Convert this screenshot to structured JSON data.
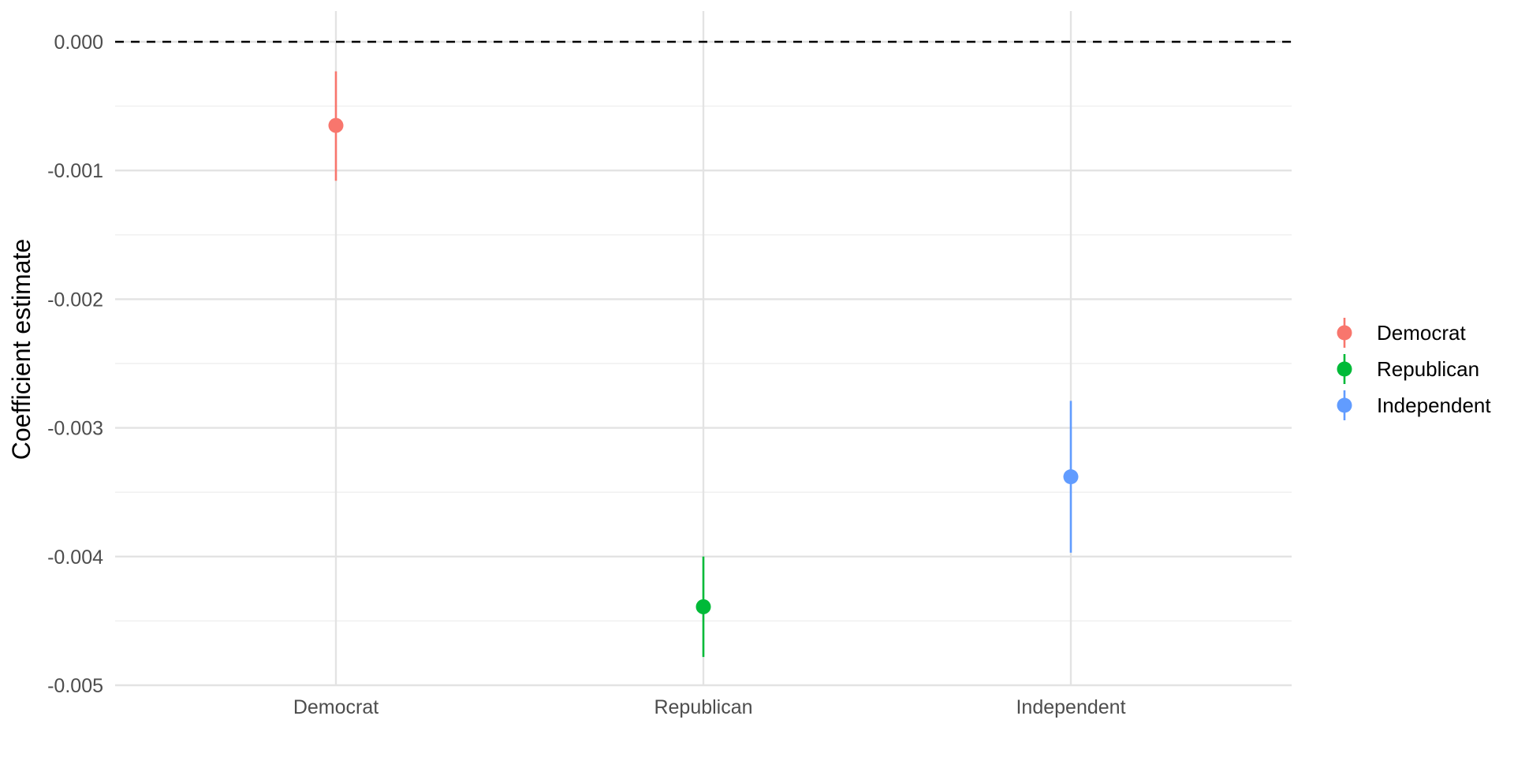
{
  "chart_data": {
    "type": "scatter",
    "subtype": "point-range",
    "title": "",
    "xlabel": "",
    "ylabel": "Coefficient estimate",
    "categories": [
      "Democrat",
      "Republican",
      "Independent"
    ],
    "series": [
      {
        "name": "Democrat",
        "category": "Democrat",
        "estimate": -0.00065,
        "lower": -0.00108,
        "upper": -0.00023,
        "color": "#F8766D"
      },
      {
        "name": "Republican",
        "category": "Republican",
        "estimate": -0.00439,
        "lower": -0.00478,
        "upper": -0.004,
        "color": "#00BA38"
      },
      {
        "name": "Independent",
        "category": "Independent",
        "estimate": -0.00338,
        "lower": -0.00397,
        "upper": -0.00279,
        "color": "#619CFF"
      }
    ],
    "y_ticks": [
      0.0,
      -0.001,
      -0.002,
      -0.003,
      -0.004,
      -0.005
    ],
    "y_tick_labels": [
      "0.000",
      "-0.001",
      "-0.002",
      "-0.003",
      "-0.004",
      "-0.005"
    ],
    "ylim": [
      -0.005,
      0.0
    ],
    "reference_line": {
      "y": 0.0,
      "style": "dashed",
      "color": "#000000"
    },
    "grid": true,
    "legend": {
      "placement": "right",
      "entries": [
        "Democrat",
        "Republican",
        "Independent"
      ]
    }
  }
}
